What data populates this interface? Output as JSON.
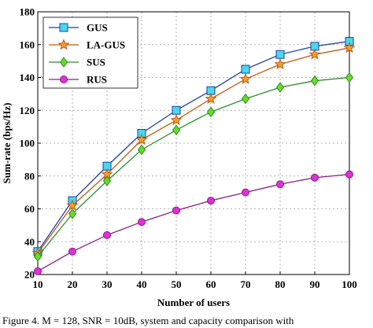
{
  "chart_data": {
    "type": "line",
    "xlabel": "Number of users",
    "ylabel": "Sum-rate (bps/Hz)",
    "xlim": [
      10,
      100
    ],
    "ylim": [
      20,
      180
    ],
    "xticks": [
      10,
      20,
      30,
      40,
      50,
      60,
      70,
      80,
      90,
      100
    ],
    "yticks": [
      20,
      40,
      60,
      80,
      100,
      120,
      140,
      160,
      180
    ],
    "x": [
      10,
      20,
      30,
      40,
      50,
      60,
      70,
      80,
      90,
      100
    ],
    "grid": "dashed",
    "legend_position": "top-left",
    "series": [
      {
        "name": "GUS",
        "color": "#1f3fa8",
        "marker": "square",
        "marker_fill": "#48d8ec",
        "values": [
          34,
          65,
          86,
          106,
          120,
          132,
          145,
          154,
          159,
          162
        ]
      },
      {
        "name": "LA-GUS",
        "color": "#c05a10",
        "marker": "star",
        "marker_fill": "#f0a030",
        "values": [
          33,
          62,
          81,
          102,
          114,
          127,
          139,
          148,
          154,
          158
        ]
      },
      {
        "name": "SUS",
        "color": "#2e8b2e",
        "marker": "diamond",
        "marker_fill": "#66dd22",
        "values": [
          31,
          57,
          77,
          96,
          108,
          119,
          127,
          134,
          138,
          140
        ]
      },
      {
        "name": "RUS",
        "color": "#8a1e8a",
        "marker": "circle",
        "marker_fill": "#e030d8",
        "values": [
          22,
          34,
          44,
          52,
          59,
          65,
          70,
          75,
          79,
          81
        ]
      }
    ]
  },
  "caption": "Figure 4.     M = 128, SNR = 10dB, system and capacity comparison with"
}
